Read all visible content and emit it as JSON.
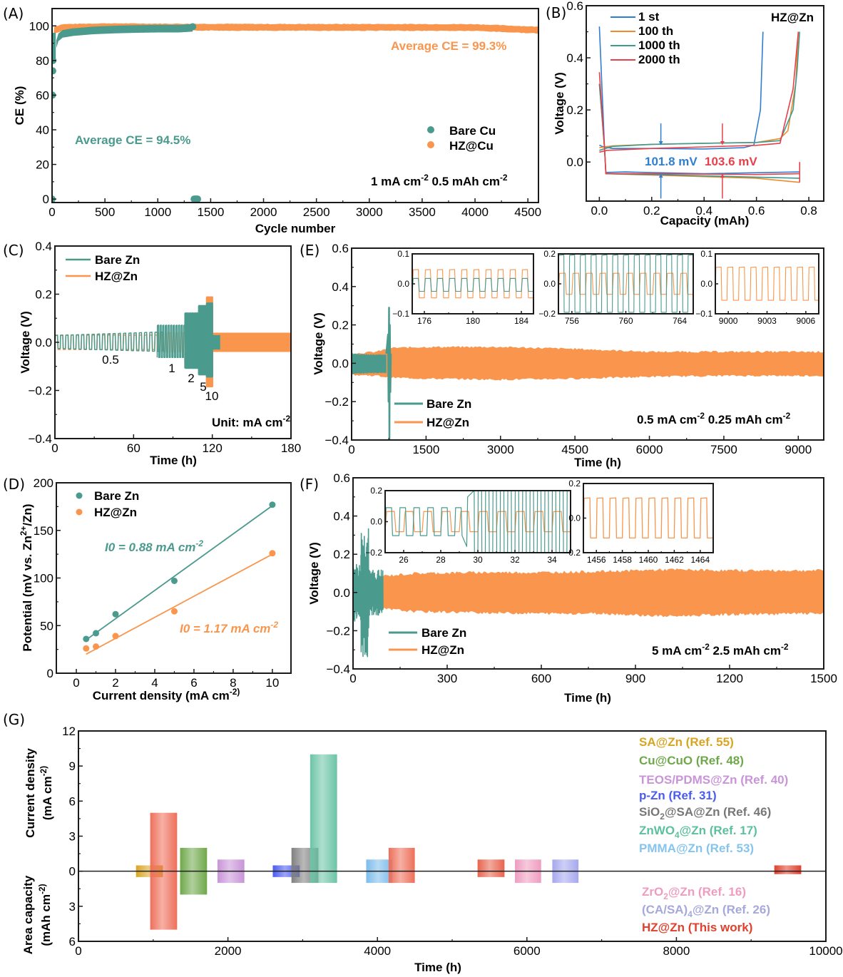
{
  "colors": {
    "bare": "#4a9a8e",
    "hz": "#f9954c",
    "b_1st": "#2f7fd0",
    "b_100": "#f08a2a",
    "b_1000": "#3f9a8f",
    "b_2000": "#e8404a",
    "arrow_blue": "#2f7fd0",
    "arrow_red": "#e8404a"
  },
  "panels": {
    "A": {
      "label": "(A)"
    },
    "B": {
      "label": "(B)"
    },
    "C": {
      "label": "(C)"
    },
    "D": {
      "label": "(D)"
    },
    "E": {
      "label": "(E)"
    },
    "F": {
      "label": "(F)"
    },
    "G": {
      "label": "(G)"
    }
  },
  "chart_data": [
    {
      "id": "A",
      "type": "scatter",
      "title": "",
      "xlabel": "Cycle number",
      "ylabel": "CE (%)",
      "xlim": [
        0,
        4600
      ],
      "ylim": [
        -2,
        110
      ],
      "xticks": [
        0,
        500,
        1000,
        1500,
        2000,
        2500,
        3000,
        3500,
        4000,
        4500
      ],
      "yticks": [
        0,
        20,
        40,
        60,
        80,
        100
      ],
      "legend": {
        "position": "bottom-right",
        "entries": [
          "Bare Cu",
          "HZ@Cu"
        ]
      },
      "series": [
        {
          "name": "Bare Cu",
          "description": "rises from ~60-80% in first cycles to ~97-99%, ends near 1330 cycles; failure points at 0% around 1330-1400 cycles",
          "x": [
            0,
            5,
            10,
            20,
            40,
            60,
            100,
            200,
            400,
            600,
            800,
            1000,
            1200,
            1330
          ],
          "y": [
            0,
            60,
            74,
            80,
            90,
            94,
            96,
            97,
            98,
            98.5,
            98.8,
            99,
            99,
            99.5
          ],
          "failure_x": [
            1330,
            1400
          ],
          "failure_y": [
            0,
            0
          ]
        },
        {
          "name": "HZ@Cu",
          "x": [
            0,
            20,
            100,
            500,
            1000,
            2000,
            3000,
            4000,
            4600
          ],
          "y": [
            80,
            98,
            99.5,
            100,
            99.8,
            99.6,
            99.6,
            99.5,
            98
          ]
        }
      ],
      "annotations": [
        "Average CE = 94.5%",
        "Average CE = 99.3%",
        "1 mA cm-2   0.5 mAh cm-2"
      ]
    },
    {
      "id": "B",
      "type": "line",
      "xlabel": "Capacity (mAh)",
      "ylabel": "Voltage (V)",
      "xlim": [
        -0.05,
        0.857
      ],
      "ylim": [
        -0.15,
        0.6
      ],
      "xticks": [
        0.0,
        0.2,
        0.4,
        0.6,
        0.8
      ],
      "yticks": [
        0.0,
        0.2,
        0.4,
        0.6
      ],
      "legend": {
        "position": "top-left",
        "entries": [
          "1 st",
          "100 th",
          "1000 th",
          "2000 th"
        ]
      },
      "series": [
        {
          "name": "1 st",
          "charge": {
            "x": [
              0.0,
              0.01,
              0.05,
              0.2,
              0.4,
              0.55,
              0.59,
              0.615,
              0.625
            ],
            "y": [
              0.065,
              0.06,
              0.052,
              0.052,
              0.05,
              0.055,
              0.065,
              0.2,
              0.5
            ]
          },
          "discharge": {
            "x": [
              0.0,
              0.02,
              0.025,
              0.1,
              0.4,
              0.765
            ],
            "y": [
              0.52,
              0.05,
              -0.04,
              -0.038,
              -0.045,
              -0.038
            ]
          }
        },
        {
          "name": "100 th",
          "charge": {
            "x": [
              0.0,
              0.05,
              0.2,
              0.4,
              0.6,
              0.69,
              0.72,
              0.75,
              0.76
            ],
            "y": [
              0.055,
              0.062,
              0.068,
              0.072,
              0.075,
              0.09,
              0.12,
              0.3,
              0.5
            ]
          },
          "discharge": {
            "x": [
              0.0,
              0.02,
              0.025,
              0.2,
              0.6,
              0.765
            ],
            "y": [
              0.3,
              0.05,
              -0.045,
              -0.05,
              -0.062,
              -0.078
            ]
          }
        },
        {
          "name": "1000 th",
          "charge": {
            "x": [
              0.0,
              0.05,
              0.2,
              0.4,
              0.6,
              0.69,
              0.74,
              0.755,
              0.765
            ],
            "y": [
              0.045,
              0.06,
              0.068,
              0.072,
              0.075,
              0.082,
              0.2,
              0.35,
              0.5
            ]
          },
          "discharge": {
            "x": [
              0.0,
              0.02,
              0.025,
              0.2,
              0.6,
              0.765
            ],
            "y": [
              0.3,
              0.05,
              -0.045,
              -0.048,
              -0.058,
              -0.062
            ]
          }
        },
        {
          "name": "2000 th",
          "charge": {
            "x": [
              0.0,
              0.03,
              0.2,
              0.4,
              0.6,
              0.69,
              0.74,
              0.76
            ],
            "y": [
              0.038,
              0.045,
              0.052,
              0.058,
              0.064,
              0.072,
              0.28,
              0.5
            ]
          },
          "discharge": {
            "x": [
              0.0,
              0.02,
              0.025,
              0.2,
              0.6,
              0.765
            ],
            "y": [
              0.345,
              0.05,
              -0.045,
              -0.045,
              -0.048,
              -0.045
            ]
          }
        }
      ],
      "annotations": [
        "HZ@Zn",
        "101.8 mV",
        "103.6 mV"
      ],
      "arrows": [
        {
          "x": 0.235,
          "color": "blue"
        },
        {
          "x": 0.47,
          "color": "red"
        }
      ]
    },
    {
      "id": "C",
      "type": "line",
      "xlabel": "Time (h)",
      "ylabel": "Voltage (V)",
      "xlim": [
        0,
        180
      ],
      "ylim": [
        -0.4,
        0.4
      ],
      "xticks": [
        0,
        60,
        120,
        180
      ],
      "yticks": [
        -0.4,
        -0.2,
        0.0,
        0.2,
        0.4
      ],
      "legend": {
        "position": "top-left",
        "entries": [
          "Bare Zn",
          "HZ@Zn"
        ]
      },
      "rate_steps": [
        {
          "rate": "0.5",
          "t_start": 0,
          "t_end": 80,
          "bare_amp": 0.035,
          "hz_amp": 0.03
        },
        {
          "rate": "1",
          "t_start": 80,
          "t_end": 100,
          "bare_amp": 0.07,
          "hz_amp": 0.04
        },
        {
          "rate": "2",
          "t_start": 100,
          "t_end": 110,
          "bare_amp": 0.12,
          "hz_amp": 0.08
        },
        {
          "rate": "5",
          "t_start": 110,
          "t_end": 116,
          "bare_amp": 0.15,
          "hz_amp": 0.13
        },
        {
          "rate": "10",
          "t_start": 116,
          "t_end": 120,
          "bare_amp": 0.16,
          "hz_amp": 0.185
        },
        {
          "rate": "0.5",
          "t_start": 120,
          "t_end": 180,
          "bare_amp": 0.03,
          "hz_amp": 0.04
        }
      ],
      "rate_labels": [
        "0.5",
        "1",
        "2",
        "5",
        "10"
      ],
      "annotations": [
        "Unit: mA cm-2"
      ]
    },
    {
      "id": "D",
      "type": "scatter",
      "xlabel": "Current density (mA cm-2)",
      "ylabel": "Potential (mV vs. Zn2+/Zn)",
      "xlim": [
        -1.02,
        10.95
      ],
      "ylim": [
        0,
        200
      ],
      "xticks": [
        0,
        2,
        4,
        6,
        8,
        10
      ],
      "yticks": [
        0,
        50,
        100,
        150,
        200
      ],
      "legend": {
        "position": "top-left",
        "entries": [
          "Bare Zn",
          "HZ@Zn"
        ]
      },
      "series": [
        {
          "name": "Bare Zn",
          "x": [
            0.5,
            1,
            2,
            5,
            10
          ],
          "y": [
            36,
            42,
            62,
            97,
            177
          ],
          "fit": [
            [
              0.5,
              35
            ],
            [
              10,
              176
            ]
          ]
        },
        {
          "name": "HZ@Zn",
          "x": [
            0.5,
            1,
            2,
            5,
            10
          ],
          "y": [
            26,
            28,
            39,
            65,
            126
          ],
          "fit": [
            [
              0.5,
              20
            ],
            [
              10,
              125
            ]
          ]
        }
      ],
      "annotations": [
        "I0 = 0.88 mA cm-2",
        "I0 = 1.17 mA cm-2"
      ]
    },
    {
      "id": "E",
      "type": "line",
      "xlabel": "Time (h)",
      "ylabel": "Voltage (V)",
      "xlim": [
        0,
        9513
      ],
      "ylim": [
        -0.4,
        0.6
      ],
      "xticks": [
        0,
        1500,
        3000,
        4500,
        6000,
        7500,
        9000
      ],
      "yticks": [
        -0.4,
        -0.2,
        0.0,
        0.2,
        0.4,
        0.6
      ],
      "legend": {
        "position": "bottom-left",
        "entries": [
          "Bare Zn",
          "HZ@Zn"
        ]
      },
      "envelope": {
        "Bare Zn": {
          "t_end": 790,
          "amp": 0.05,
          "spike_t": 760,
          "spike_max": 0.29,
          "spike_min": -0.4
        },
        "HZ@Zn": {
          "t": [
            0,
            500,
            790,
            1500,
            3000,
            4500,
            6000,
            7500,
            9513
          ],
          "upper": [
            0.05,
            0.06,
            0.08,
            0.085,
            0.085,
            0.075,
            0.06,
            0.06,
            0.06
          ],
          "lower": [
            -0.06,
            -0.065,
            -0.075,
            -0.08,
            -0.085,
            -0.08,
            -0.07,
            -0.065,
            -0.065
          ]
        }
      },
      "insets": [
        {
          "xlim": [
            175,
            185
          ],
          "ylim": [
            -0.1,
            0.1
          ],
          "xticks": [
            176,
            180,
            184
          ],
          "yticks": [
            -0.1,
            0.0,
            0.1
          ],
          "hz_amp": 0.047,
          "bare_upper": 0.018,
          "bare_lower": -0.025
        },
        {
          "xlim": [
            755,
            765
          ],
          "ylim": [
            -0.2,
            0.2
          ],
          "xticks": [
            756,
            760,
            764
          ],
          "yticks": [
            -0.2,
            0.0,
            0.2
          ],
          "hz_amp": 0.07,
          "bare_amp": 0.19
        },
        {
          "xlim": [
            8999,
            9007
          ],
          "ylim": [
            -0.1,
            0.1
          ],
          "xticks": [
            9000,
            9003,
            9006
          ],
          "yticks": [
            -0.1,
            0.0,
            0.1
          ],
          "hz_amp": 0.055
        }
      ],
      "annotations": [
        "0.5 mA cm-2  0.25 mAh cm-2"
      ]
    },
    {
      "id": "F",
      "type": "line",
      "xlabel": "Time (h)",
      "ylabel": "Voltage (V)",
      "xlim": [
        0,
        1500
      ],
      "ylim": [
        -0.4,
        0.6
      ],
      "xticks": [
        0,
        300,
        600,
        900,
        1200,
        1500
      ],
      "yticks": [
        -0.4,
        -0.2,
        0.0,
        0.2,
        0.4,
        0.6
      ],
      "legend": {
        "position": "bottom-left",
        "entries": [
          "Bare Zn",
          "HZ@Zn"
        ]
      },
      "envelope": {
        "Bare Zn": {
          "t_end": 95,
          "max": 0.37,
          "min": -0.34
        },
        "HZ@Zn": {
          "t": [
            85,
            200,
            400,
            600,
            800,
            1000,
            1200,
            1500
          ],
          "upper": [
            0.085,
            0.1,
            0.105,
            0.105,
            0.11,
            0.12,
            0.115,
            0.115
          ],
          "lower": [
            -0.085,
            -0.1,
            -0.105,
            -0.11,
            -0.11,
            -0.125,
            -0.115,
            -0.11
          ]
        }
      },
      "insets": [
        {
          "xlim": [
            25,
            35
          ],
          "ylim": [
            -0.2,
            0.2
          ],
          "xticks": [
            26,
            28,
            30,
            32,
            34
          ],
          "yticks": [
            -0.2,
            0.0,
            0.2
          ],
          "hz_amp": 0.065
        },
        {
          "xlim": [
            1455,
            1465
          ],
          "ylim": [
            -0.2,
            0.2
          ],
          "xticks": [
            1456,
            1458,
            1460,
            1462,
            1464
          ],
          "yticks": [
            -0.2,
            0.0,
            0.2
          ],
          "hz_amp": 0.115
        }
      ],
      "annotations": [
        "5 mA cm-2   2.5 mAh cm-2"
      ]
    },
    {
      "id": "G",
      "type": "bar",
      "xlabel": "Time (h)",
      "ylabel_top": "Current density (mA cm-2)",
      "ylabel_bottom": "Area capacity (mAh cm-2)",
      "xlim": [
        0,
        10000
      ],
      "ylim": [
        -6,
        12
      ],
      "xticks": [
        0,
        2000,
        4000,
        6000,
        8000,
        10000
      ],
      "yticks_labels": [
        "6",
        "3",
        "0",
        "3",
        "6",
        "9",
        "12"
      ],
      "yticks_values": [
        -6,
        -3,
        0,
        3,
        6,
        9,
        12
      ],
      "legend": {
        "position": "right"
      },
      "bars": [
        {
          "name": "SA@Zn (Ref. 55)",
          "x_start": 770,
          "x_end": 1130,
          "current": 0.5,
          "capacity": 0.5,
          "color": "#d9a521"
        },
        {
          "name": "red-bar-1",
          "x_start": 960,
          "x_end": 1320,
          "current": 5,
          "capacity": 5,
          "color": "#ee6f5a"
        },
        {
          "name": "Cu@CuO (Ref. 48)",
          "x_start": 1360,
          "x_end": 1720,
          "current": 2,
          "capacity": 2,
          "color": "#6fa84a"
        },
        {
          "name": "TEOS/PDMS@Zn (Ref. 40)",
          "x_start": 1860,
          "x_end": 2220,
          "current": 1,
          "capacity": 1,
          "color": "#c994d8"
        },
        {
          "name": "p-Zn (Ref. 31)",
          "x_start": 2600,
          "x_end": 2960,
          "current": 0.5,
          "capacity": 0.5,
          "color": "#4a5cf0"
        },
        {
          "name": "SiO2@SA@Zn (Ref. 46)",
          "x_start": 2850,
          "x_end": 3210,
          "current": 2,
          "capacity": 1,
          "color": "#808080"
        },
        {
          "name": "ZnWO4@Zn (Ref. 17)",
          "x_start": 3100,
          "x_end": 3460,
          "current": 10,
          "capacity": 1,
          "color": "#6cc4a6"
        },
        {
          "name": "PMMA@Zn (Ref. 53)",
          "x_start": 3850,
          "x_end": 4200,
          "current": 1,
          "capacity": 1,
          "color": "#7cbcec"
        },
        {
          "name": "red-bar-2",
          "x_start": 4150,
          "x_end": 4500,
          "current": 2,
          "capacity": 1,
          "color": "#ee6f5a"
        },
        {
          "name": "red-bar-3",
          "x_start": 5340,
          "x_end": 5700,
          "current": 1,
          "capacity": 0.5,
          "color": "#e8644e"
        },
        {
          "name": "ZrO2@Zn (Ref. 16)",
          "x_start": 5840,
          "x_end": 6190,
          "current": 1,
          "capacity": 1,
          "color": "#ef9cc0"
        },
        {
          "name": "(CA/SA)4@Zn (Ref. 26)",
          "x_start": 6340,
          "x_end": 6690,
          "current": 1,
          "capacity": 1,
          "color": "#a6a8ee"
        },
        {
          "name": "HZ@Zn (This work)",
          "x_start": 9310,
          "x_end": 9670,
          "current": 0.5,
          "capacity": 0.25,
          "color": "#e0402c"
        }
      ],
      "legend_entries": [
        {
          "text": "SA@Zn (Ref. 55)",
          "color": "#d9a521"
        },
        {
          "text": "Cu@CuO (Ref. 48)",
          "color": "#6fa84a"
        },
        {
          "text": "TEOS/PDMS@Zn (Ref. 40)",
          "color": "#c994d8"
        },
        {
          "text": "p-Zn (Ref. 31)",
          "color": "#4a5cf0"
        },
        {
          "text": "SiO2@SA@Zn (Ref. 46)",
          "color": "#777777"
        },
        {
          "text": "ZnWO4@Zn (Ref. 17)",
          "color": "#5dc09c"
        },
        {
          "text": "PMMA@Zn (Ref. 53)",
          "color": "#86c4ee"
        },
        {
          "text": "ZrO2@Zn (Ref. 16)",
          "color": "#ef9cc0"
        },
        {
          "text": "(CA/SA)4@Zn (Ref. 26)",
          "color": "#a6a8dc"
        },
        {
          "text": "HZ@Zn (This work)",
          "color": "#e0402c"
        }
      ]
    }
  ]
}
